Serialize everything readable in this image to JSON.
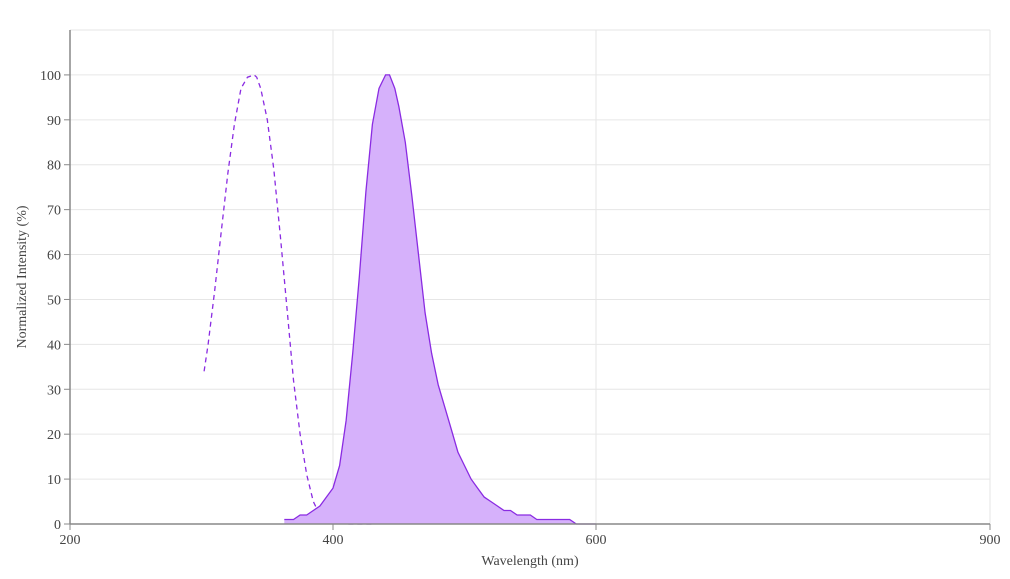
{
  "chart_data": {
    "type": "area",
    "xlabel": "Wavelength (nm)",
    "ylabel": "Normalized Intensity (%)",
    "xlim": [
      200,
      900
    ],
    "ylim": [
      0,
      110
    ],
    "x_ticks": [
      200,
      400,
      600,
      900
    ],
    "y_ticks": [
      0,
      10,
      20,
      30,
      40,
      50,
      60,
      70,
      80,
      90,
      100
    ],
    "grid": true,
    "legend": "none",
    "colors": {
      "line": "#8a2be2",
      "fill": "#d6b1fb",
      "grid": "#e6e6e6",
      "axis": "#888888"
    },
    "series": [
      {
        "style": "dashed",
        "x": [
          302,
          305,
          310,
          315,
          320,
          325,
          330,
          335,
          340,
          342,
          345,
          350,
          355,
          360,
          365,
          370,
          375,
          380,
          385,
          390,
          395,
          400,
          405,
          410,
          415,
          420,
          430
        ],
        "y": [
          34,
          40,
          52,
          65,
          78,
          89,
          97,
          99.5,
          100,
          99.5,
          97,
          90,
          79,
          64,
          48,
          32,
          20,
          11,
          5,
          2,
          1,
          0.5,
          0.3,
          0,
          0,
          0,
          0
        ]
      },
      {
        "style": "filled",
        "x": [
          363,
          370,
          375,
          380,
          385,
          390,
          395,
          400,
          405,
          410,
          415,
          420,
          425,
          430,
          435,
          440,
          443,
          447,
          450,
          455,
          460,
          465,
          470,
          475,
          480,
          485,
          490,
          495,
          500,
          505,
          510,
          515,
          520,
          525,
          530,
          535,
          540,
          545,
          550,
          555,
          560,
          565,
          570,
          575,
          580,
          585,
          590,
          593,
          600
        ],
        "y": [
          1,
          1,
          2,
          2,
          3,
          4,
          6,
          8,
          13,
          23,
          38,
          55,
          74,
          89,
          97,
          100,
          100,
          97,
          93,
          85,
          73,
          60,
          47,
          38,
          31,
          26,
          21,
          16,
          13,
          10,
          8,
          6,
          5,
          4,
          3,
          3,
          2,
          2,
          2,
          1,
          1,
          1,
          1,
          1,
          1,
          0,
          0,
          0,
          0
        ]
      }
    ]
  }
}
